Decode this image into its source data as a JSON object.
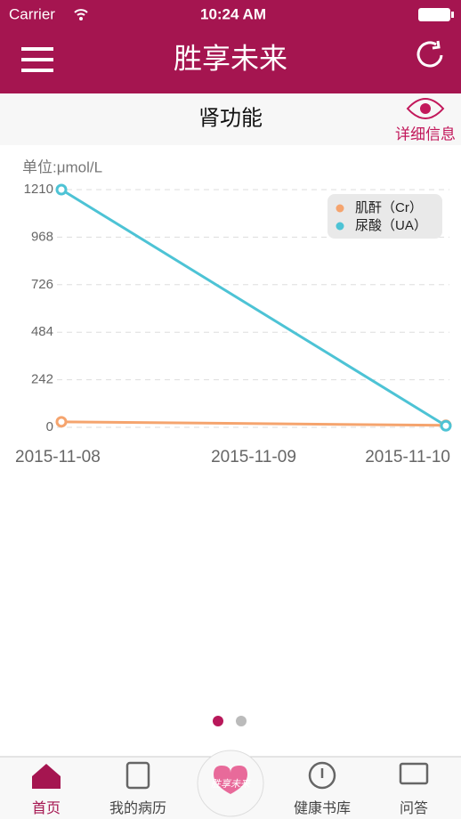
{
  "status_bar": {
    "carrier": "Carrier",
    "time": "10:24 AM"
  },
  "header": {
    "title": "胜享未来"
  },
  "section": {
    "title": "肾功能",
    "detail_link": "详细信息"
  },
  "chart_data": {
    "type": "line",
    "unit_label": "单位:μmol/L",
    "x": [
      "2015-11-08",
      "2015-11-10"
    ],
    "xlim": [
      "2015-11-08",
      "2015-11-10"
    ],
    "xticks": [
      "2015-11-08",
      "2015-11-09",
      "2015-11-10"
    ],
    "ylim": [
      0,
      1210
    ],
    "yticks": [
      0,
      242,
      484,
      726,
      968,
      1210
    ],
    "grid": true,
    "legend": "upper right",
    "series": [
      {
        "name": "肌酐（Cr）",
        "color": "#f5a46e",
        "values": [
          28,
          10
        ]
      },
      {
        "name": "尿酸（UA）",
        "color": "#4dc3d5",
        "values": [
          1210,
          8
        ]
      }
    ]
  },
  "tab_bar": {
    "items": [
      "首页",
      "我的病历",
      "胜享未来",
      "健康书库",
      "问答"
    ]
  }
}
